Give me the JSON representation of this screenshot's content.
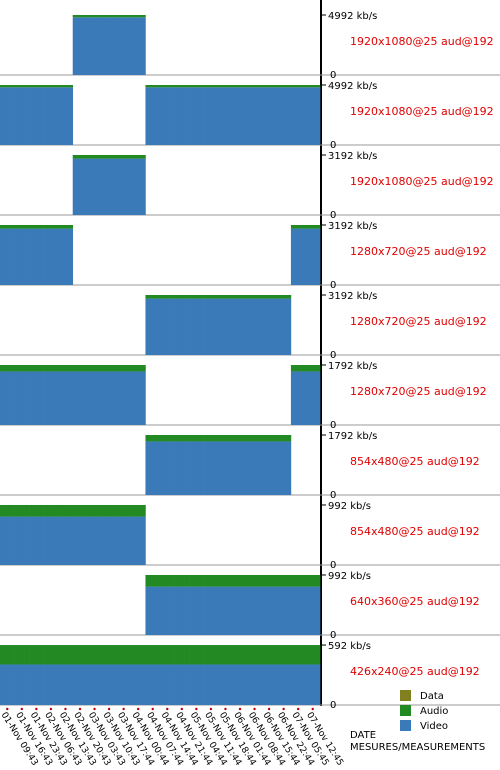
{
  "chart_data": [
    {
      "type": "bar",
      "label": "1920x1080@25 aud@192",
      "ylim": [
        0,
        5824
      ],
      "yticks": [
        0,
        {
          "value": 4992,
          "label": "4992 kb/s"
        }
      ],
      "series": [
        {
          "name": "Video",
          "color": "#3a7ab8",
          "values": [
            null,
            null,
            null,
            null,
            null,
            4800,
            4800,
            4800,
            4800,
            4800,
            null,
            null,
            null,
            null,
            null,
            null,
            null,
            null,
            null,
            null,
            null,
            null
          ]
        },
        {
          "name": "Audio",
          "color": "#238a23",
          "values": [
            null,
            null,
            null,
            null,
            null,
            192,
            192,
            192,
            192,
            192,
            null,
            null,
            null,
            null,
            null,
            null,
            null,
            null,
            null,
            null,
            null,
            null
          ]
        }
      ]
    },
    {
      "type": "bar",
      "label": "1920x1080@25 aud@192",
      "ylim": [
        0,
        5824
      ],
      "yticks": [
        0,
        {
          "value": 4992,
          "label": "4992 kb/s"
        }
      ],
      "series": [
        {
          "name": "Video",
          "color": "#3a7ab8",
          "values": [
            4800,
            4800,
            4800,
            4800,
            4800,
            null,
            null,
            null,
            null,
            null,
            4800,
            4800,
            4800,
            4800,
            4800,
            4800,
            4800,
            4800,
            4800,
            4800,
            4800,
            4800
          ]
        },
        {
          "name": "Audio",
          "color": "#238a23",
          "values": [
            192,
            192,
            192,
            192,
            192,
            null,
            null,
            null,
            null,
            null,
            192,
            192,
            192,
            192,
            192,
            192,
            192,
            192,
            192,
            192,
            192,
            192
          ]
        }
      ]
    },
    {
      "type": "bar",
      "label": "1920x1080@25 aud@192",
      "ylim": [
        0,
        3724
      ],
      "yticks": [
        0,
        {
          "value": 3192,
          "label": "3192 kb/s"
        }
      ],
      "series": [
        {
          "name": "Video",
          "color": "#3a7ab8",
          "values": [
            null,
            null,
            null,
            null,
            null,
            3000,
            3000,
            3000,
            3000,
            3000,
            null,
            null,
            null,
            null,
            null,
            null,
            null,
            null,
            null,
            null,
            null,
            null
          ]
        },
        {
          "name": "Audio",
          "color": "#238a23",
          "values": [
            null,
            null,
            null,
            null,
            null,
            192,
            192,
            192,
            192,
            192,
            null,
            null,
            null,
            null,
            null,
            null,
            null,
            null,
            null,
            null,
            null,
            null
          ]
        }
      ]
    },
    {
      "type": "bar",
      "label": "1280x720@25 aud@192",
      "ylim": [
        0,
        3724
      ],
      "yticks": [
        0,
        {
          "value": 3192,
          "label": "3192 kb/s"
        }
      ],
      "series": [
        {
          "name": "Video",
          "color": "#3a7ab8",
          "values": [
            3000,
            3000,
            3000,
            3000,
            3000,
            null,
            null,
            null,
            null,
            null,
            null,
            null,
            null,
            null,
            null,
            null,
            null,
            null,
            null,
            null,
            3000,
            3000
          ]
        },
        {
          "name": "Audio",
          "color": "#238a23",
          "values": [
            192,
            192,
            192,
            192,
            192,
            null,
            null,
            null,
            null,
            null,
            null,
            null,
            null,
            null,
            null,
            null,
            null,
            null,
            null,
            null,
            192,
            192
          ]
        }
      ]
    },
    {
      "type": "bar",
      "label": "1280x720@25 aud@192",
      "ylim": [
        0,
        3724
      ],
      "yticks": [
        0,
        {
          "value": 3192,
          "label": "3192 kb/s"
        }
      ],
      "series": [
        {
          "name": "Video",
          "color": "#3a7ab8",
          "values": [
            null,
            null,
            null,
            null,
            null,
            null,
            null,
            null,
            null,
            null,
            3000,
            3000,
            3000,
            3000,
            3000,
            3000,
            3000,
            3000,
            3000,
            3000,
            null,
            null
          ]
        },
        {
          "name": "Audio",
          "color": "#238a23",
          "values": [
            null,
            null,
            null,
            null,
            null,
            null,
            null,
            null,
            null,
            null,
            192,
            192,
            192,
            192,
            192,
            192,
            192,
            192,
            192,
            192,
            null,
            null
          ]
        }
      ]
    },
    {
      "type": "bar",
      "label": "1280x720@25 aud@192",
      "ylim": [
        0,
        2091
      ],
      "yticks": [
        0,
        {
          "value": 1792,
          "label": "1792 kb/s"
        }
      ],
      "series": [
        {
          "name": "Video",
          "color": "#3a7ab8",
          "values": [
            1600,
            1600,
            1600,
            1600,
            1600,
            1600,
            1600,
            1600,
            1600,
            1600,
            null,
            null,
            null,
            null,
            null,
            null,
            null,
            null,
            null,
            null,
            1600,
            1600
          ]
        },
        {
          "name": "Audio",
          "color": "#238a23",
          "values": [
            192,
            192,
            192,
            192,
            192,
            192,
            192,
            192,
            192,
            192,
            null,
            null,
            null,
            null,
            null,
            null,
            null,
            null,
            null,
            null,
            192,
            192
          ]
        }
      ]
    },
    {
      "type": "bar",
      "label": "854x480@25 aud@192",
      "ylim": [
        0,
        2091
      ],
      "yticks": [
        0,
        {
          "value": 1792,
          "label": "1792 kb/s"
        }
      ],
      "series": [
        {
          "name": "Video",
          "color": "#3a7ab8",
          "values": [
            null,
            null,
            null,
            null,
            null,
            null,
            null,
            null,
            null,
            null,
            1600,
            1600,
            1600,
            1600,
            1600,
            1600,
            1600,
            1600,
            1600,
            1600,
            null,
            null
          ]
        },
        {
          "name": "Audio",
          "color": "#238a23",
          "values": [
            null,
            null,
            null,
            null,
            null,
            null,
            null,
            null,
            null,
            null,
            192,
            192,
            192,
            192,
            192,
            192,
            192,
            192,
            192,
            192,
            null,
            null
          ]
        }
      ]
    },
    {
      "type": "bar",
      "label": "854x480@25 aud@192",
      "ylim": [
        0,
        1157
      ],
      "yticks": [
        0,
        {
          "value": 992,
          "label": "992 kb/s"
        }
      ],
      "series": [
        {
          "name": "Video",
          "color": "#3a7ab8",
          "values": [
            800,
            800,
            800,
            800,
            800,
            800,
            800,
            800,
            800,
            800,
            null,
            null,
            null,
            null,
            null,
            null,
            null,
            null,
            null,
            null,
            null,
            null
          ]
        },
        {
          "name": "Audio",
          "color": "#238a23",
          "values": [
            192,
            192,
            192,
            192,
            192,
            192,
            192,
            192,
            192,
            192,
            null,
            null,
            null,
            null,
            null,
            null,
            null,
            null,
            null,
            null,
            null,
            null
          ]
        }
      ]
    },
    {
      "type": "bar",
      "label": "640x360@25 aud@192",
      "ylim": [
        0,
        1157
      ],
      "yticks": [
        0,
        {
          "value": 992,
          "label": "992 kb/s"
        }
      ],
      "series": [
        {
          "name": "Video",
          "color": "#3a7ab8",
          "values": [
            null,
            null,
            null,
            null,
            null,
            null,
            null,
            null,
            null,
            null,
            800,
            800,
            800,
            800,
            800,
            800,
            800,
            800,
            800,
            800,
            800,
            800
          ]
        },
        {
          "name": "Audio",
          "color": "#238a23",
          "values": [
            null,
            null,
            null,
            null,
            null,
            null,
            null,
            null,
            null,
            null,
            192,
            192,
            192,
            192,
            192,
            192,
            192,
            192,
            192,
            192,
            192,
            192
          ]
        }
      ]
    },
    {
      "type": "bar",
      "label": "426x240@25 aud@192",
      "ylim": [
        0,
        691
      ],
      "yticks": [
        0,
        {
          "value": 592,
          "label": "592 kb/s"
        }
      ],
      "categories": [
        "01-Nov 09:43",
        "01-Nov 16:43",
        "01-Nov 23:43",
        "02-Nov 06:43",
        "02-Nov 13:43",
        "02-Nov 20:43",
        "03-Nov 03:43",
        "03-Nov 10:43",
        "03-Nov 17:44",
        "04-Nov 00:44",
        "04-Nov 07:44",
        "04-Nov 14:44",
        "04-Nov 21:44",
        "05-Nov 04:44",
        "05-Nov 11:44",
        "05-Nov 18:44",
        "06-Nov 01:44",
        "06-Nov 08:44",
        "06-Nov 15:44",
        "06-Nov 22:44",
        "07-Nov 05:45",
        "07-Nov 12:45"
      ],
      "x_label": "DATE",
      "footer": "MESURES/MEASUREMENTS",
      "legend": [
        {
          "name": "Data",
          "color": "#808020"
        },
        {
          "name": "Audio",
          "color": "#238a23"
        },
        {
          "name": "Video",
          "color": "#3a7ab8"
        }
      ],
      "series": [
        {
          "name": "Video",
          "color": "#3a7ab8",
          "values": [
            400,
            400,
            400,
            400,
            400,
            400,
            400,
            400,
            400,
            400,
            400,
            400,
            400,
            400,
            400,
            400,
            400,
            400,
            400,
            400,
            400,
            400
          ]
        },
        {
          "name": "Audio",
          "color": "#238a23",
          "values": [
            192,
            192,
            192,
            192,
            192,
            192,
            192,
            192,
            192,
            192,
            192,
            192,
            192,
            192,
            192,
            192,
            192,
            192,
            192,
            192,
            192,
            192
          ]
        }
      ]
    }
  ]
}
